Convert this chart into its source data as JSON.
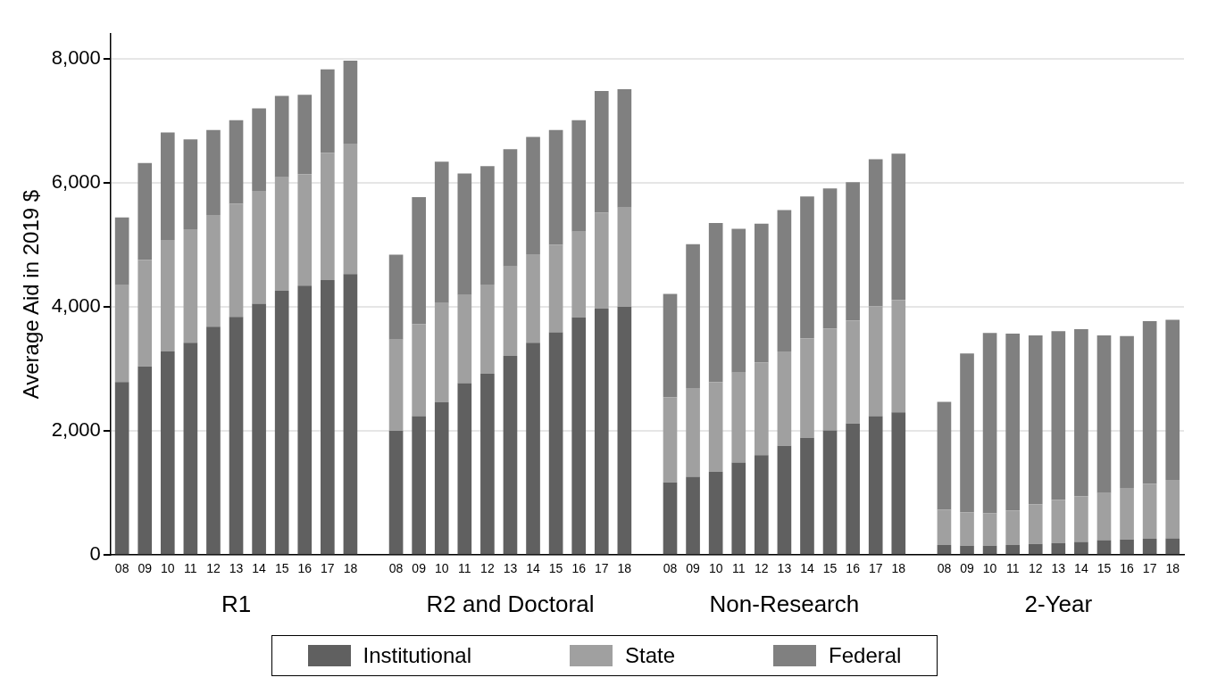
{
  "chart_data": {
    "type": "bar",
    "stacked": true,
    "ylabel": "Average Aid in 2019 $",
    "categories": [
      "08",
      "09",
      "10",
      "11",
      "12",
      "13",
      "14",
      "15",
      "16",
      "17",
      "18",
      null,
      "08",
      "09",
      "10",
      "11",
      "12",
      "13",
      "14",
      "15",
      "16",
      "17",
      "18",
      null,
      "08",
      "09",
      "10",
      "11",
      "12",
      "13",
      "14",
      "15",
      "16",
      "17",
      "18",
      null,
      "08",
      "09",
      "10",
      "11",
      "12",
      "13",
      "14",
      "15",
      "16",
      "17",
      "18"
    ],
    "series": [
      {
        "name": "Institutional",
        "color": "#606060",
        "values": [
          2790,
          3040,
          3280,
          3420,
          3680,
          3840,
          4050,
          4260,
          4340,
          4430,
          4530,
          null,
          2000,
          2240,
          2460,
          2770,
          2920,
          3210,
          3420,
          3590,
          3830,
          3970,
          4000,
          null,
          1170,
          1260,
          1340,
          1490,
          1610,
          1760,
          1890,
          2010,
          2120,
          2240,
          2300,
          null,
          160,
          150,
          150,
          160,
          180,
          190,
          210,
          240,
          250,
          260,
          270
        ]
      },
      {
        "name": "State",
        "color": "#a0a0a0",
        "values": [
          1560,
          1720,
          1800,
          1830,
          1800,
          1820,
          1820,
          1830,
          1800,
          2050,
          2100,
          null,
          1470,
          1480,
          1600,
          1420,
          1440,
          1440,
          1430,
          1410,
          1380,
          1550,
          1600,
          null,
          1370,
          1430,
          1450,
          1450,
          1490,
          1520,
          1600,
          1640,
          1660,
          1770,
          1810,
          null,
          570,
          540,
          520,
          560,
          640,
          700,
          740,
          760,
          830,
          890,
          940
        ]
      },
      {
        "name": "Federal",
        "color": "#808080",
        "values": [
          1090,
          1560,
          1730,
          1450,
          1370,
          1350,
          1330,
          1310,
          1280,
          1350,
          1340,
          null,
          1370,
          2050,
          2280,
          1960,
          1910,
          1890,
          1890,
          1850,
          1800,
          1960,
          1910,
          null,
          1670,
          2320,
          2560,
          2320,
          2240,
          2280,
          2290,
          2260,
          2230,
          2370,
          2360,
          null,
          1740,
          2560,
          2910,
          2850,
          2720,
          2720,
          2690,
          2540,
          2450,
          2620,
          2580
        ]
      }
    ],
    "ylim": [
      0,
      8400
    ],
    "yticks": [
      0,
      {
        "value": 2000,
        "label": "2,000"
      },
      {
        "value": 4000,
        "label": "4,000"
      },
      {
        "value": 6000,
        "label": "6,000"
      },
      {
        "value": 8000,
        "label": "8,000"
      }
    ],
    "grid": "y",
    "legend": "bottom",
    "annotations": [
      "R1",
      "R2 and Doctoral",
      "Non-Research",
      "2-Year"
    ]
  }
}
